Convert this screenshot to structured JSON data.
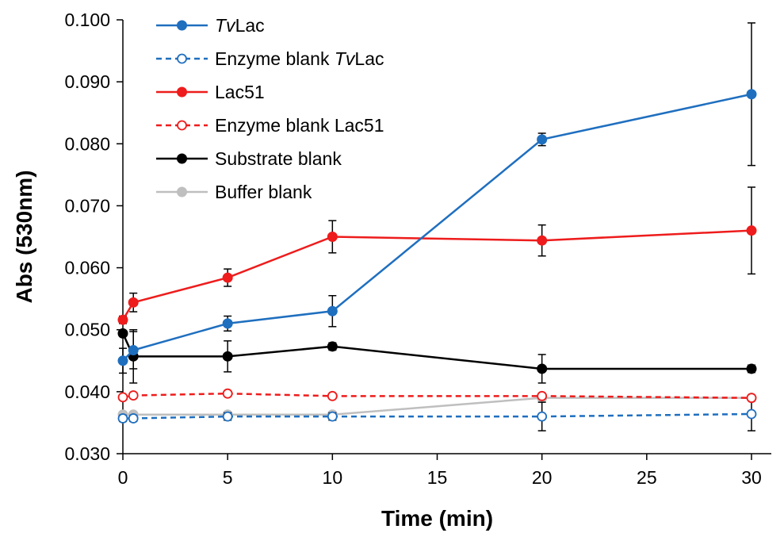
{
  "chart_data": {
    "type": "line",
    "xlabel": "Time (min)",
    "ylabel": "Abs (530nm)",
    "xlim": [
      0,
      30
    ],
    "ylim": [
      0.03,
      0.1
    ],
    "x_ticks": [
      "0",
      "5",
      "10",
      "15",
      "20",
      "25",
      "30"
    ],
    "y_ticks": [
      "0.030",
      "0.040",
      "0.050",
      "0.060",
      "0.070",
      "0.080",
      "0.090",
      "0.100"
    ],
    "grid": false,
    "legend_position": "top-left",
    "x": [
      0,
      0.5,
      5,
      10,
      20,
      30
    ],
    "series": [
      {
        "name": "TvLac",
        "name_italic": "Tv",
        "name_rest": "Lac",
        "color": "#1f6fbf",
        "line": "solid",
        "marker": "filled",
        "values": [
          0.045,
          0.0467,
          0.051,
          0.053,
          0.0807,
          0.088
        ],
        "errors": [
          0.002,
          0.003,
          0.0012,
          0.0025,
          0.001,
          0.0115
        ]
      },
      {
        "name": "Enzyme blank TvLac",
        "name_prefix": "Enzyme blank ",
        "name_italic": "Tv",
        "name_rest": "Lac",
        "color": "#1f6fbf",
        "line": "dashed",
        "marker": "open",
        "values": [
          0.0357,
          0.0357,
          0.036,
          0.036,
          0.036,
          0.0364
        ],
        "errors": [
          0.0005,
          0.0005,
          0.0006,
          0.0006,
          0.0023,
          0.0027
        ]
      },
      {
        "name": "Lac51",
        "color": "#ee1c1c",
        "line": "solid",
        "marker": "filled",
        "values": [
          0.0516,
          0.0544,
          0.0584,
          0.065,
          0.0644,
          0.066
        ],
        "errors": [
          0.0006,
          0.0015,
          0.0014,
          0.0026,
          0.0025,
          0.007
        ]
      },
      {
        "name": "Enzyme blank Lac51",
        "color": "#ee1c1c",
        "line": "dashed",
        "marker": "open",
        "values": [
          0.0391,
          0.0394,
          0.0397,
          0.0393,
          0.0393,
          0.039
        ],
        "errors": [
          0.0003,
          0.0003,
          0.0003,
          0.0003,
          0.0003,
          0.0003
        ]
      },
      {
        "name": "Substrate blank",
        "color": "#000000",
        "line": "solid",
        "marker": "filled",
        "values": [
          0.0494,
          0.0457,
          0.0457,
          0.0473,
          0.0437,
          0.0437
        ],
        "errors": [
          0.0,
          0.0043,
          0.0025,
          0.0006,
          0.0023,
          0.0006
        ]
      },
      {
        "name": "Buffer blank",
        "color": "#bfbfbf",
        "line": "solid",
        "marker": "filled",
        "values": [
          0.0363,
          0.0363,
          0.0363,
          0.0363,
          0.039,
          0.039
        ],
        "errors": [
          0.0003,
          0.0003,
          0.0003,
          0.0003,
          0.0003,
          0.0003
        ]
      }
    ]
  }
}
